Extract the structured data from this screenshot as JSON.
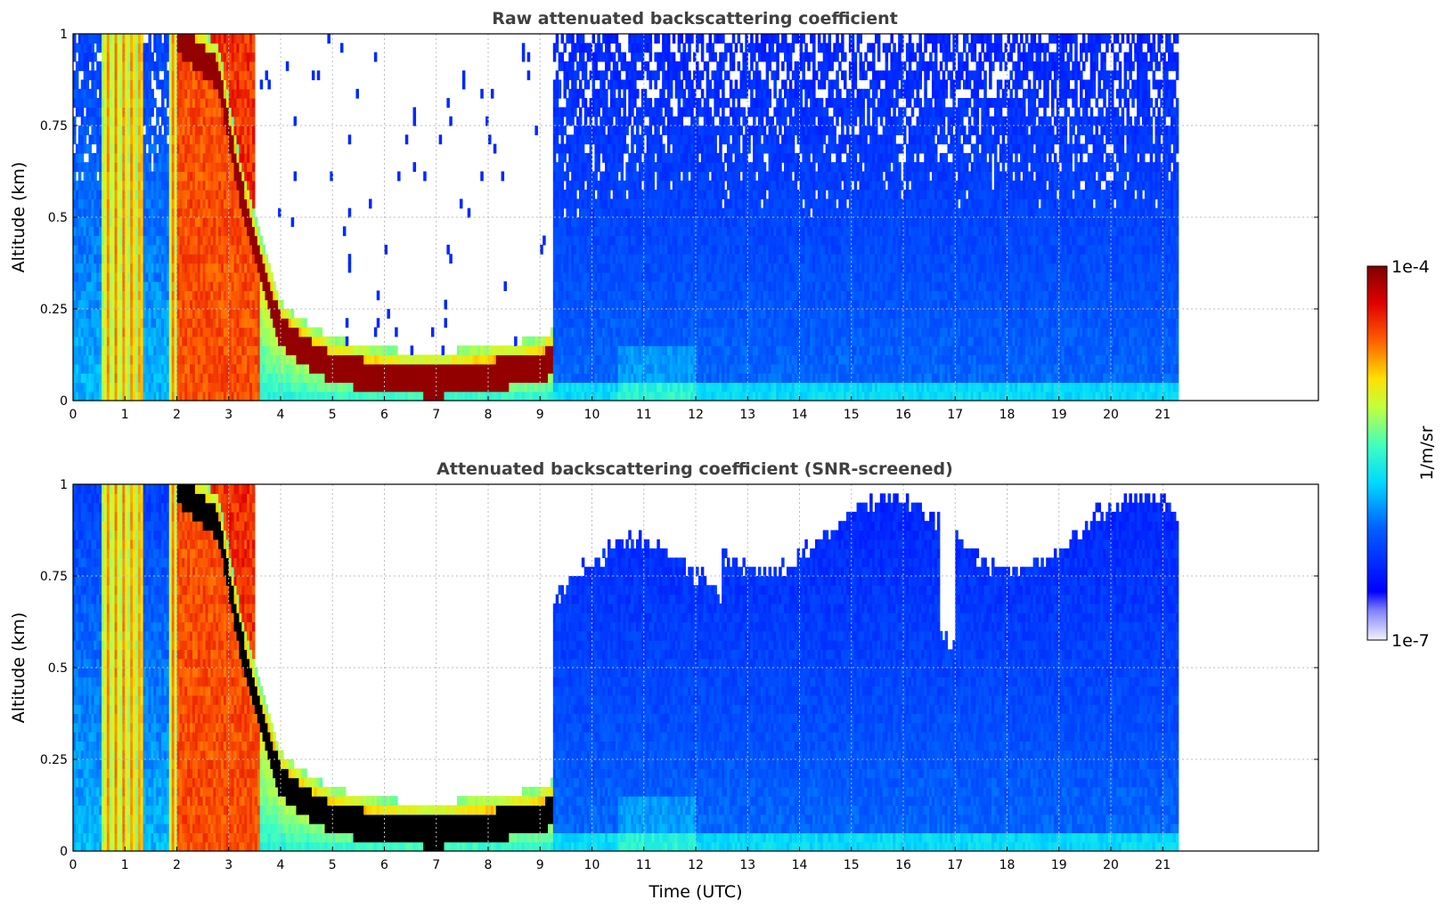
{
  "chart_data": [
    {
      "type": "heatmap",
      "title": "Raw attenuated backscattering coefficient",
      "ylabel": "Altitude (km)",
      "xlabel": "",
      "xlim": [
        0,
        24
      ],
      "ylim": [
        0,
        1
      ],
      "data_xmax": 21.3,
      "x_ticks": [
        "0",
        "1",
        "2",
        "3",
        "4",
        "5",
        "6",
        "7",
        "8",
        "9",
        "10",
        "11",
        "12",
        "13",
        "14",
        "15",
        "16",
        "17",
        "18",
        "19",
        "20",
        "21"
      ],
      "y_ticks": [
        "0",
        "0.25",
        "0.5",
        "0.75",
        "1"
      ],
      "grid": true,
      "screened": false,
      "cloud_base_km": [
        {
          "t": 2.0,
          "h": 1.0
        },
        {
          "t": 2.8,
          "h": 0.9
        },
        {
          "t": 3.2,
          "h": 0.6
        },
        {
          "t": 3.6,
          "h": 0.38
        },
        {
          "t": 4.0,
          "h": 0.2
        },
        {
          "t": 4.5,
          "h": 0.14
        },
        {
          "t": 5.0,
          "h": 0.1
        },
        {
          "t": 6.0,
          "h": 0.07
        },
        {
          "t": 7.0,
          "h": 0.06
        },
        {
          "t": 8.0,
          "h": 0.08
        },
        {
          "t": 9.0,
          "h": 0.1
        },
        {
          "t": 9.2,
          "h": 0.12
        }
      ]
    },
    {
      "type": "heatmap",
      "title": "Attenuated backscattering coefficient (SNR-screened)",
      "ylabel": "Altitude (km)",
      "xlabel": "Time (UTC)",
      "xlim": [
        0,
        24
      ],
      "ylim": [
        0,
        1
      ],
      "data_xmax": 21.3,
      "x_ticks": [
        "0",
        "1",
        "2",
        "3",
        "4",
        "5",
        "6",
        "7",
        "8",
        "9",
        "10",
        "11",
        "12",
        "13",
        "14",
        "15",
        "16",
        "17",
        "18",
        "19",
        "20",
        "21"
      ],
      "y_ticks": [
        "0",
        "0.25",
        "0.5",
        "0.75",
        "1"
      ],
      "grid": true,
      "screened": true
    }
  ],
  "colorbar": {
    "label": "1/m/sr",
    "max_label": "1e-4",
    "min_label": "1e-7",
    "colormap": "jet",
    "scale": "log"
  }
}
